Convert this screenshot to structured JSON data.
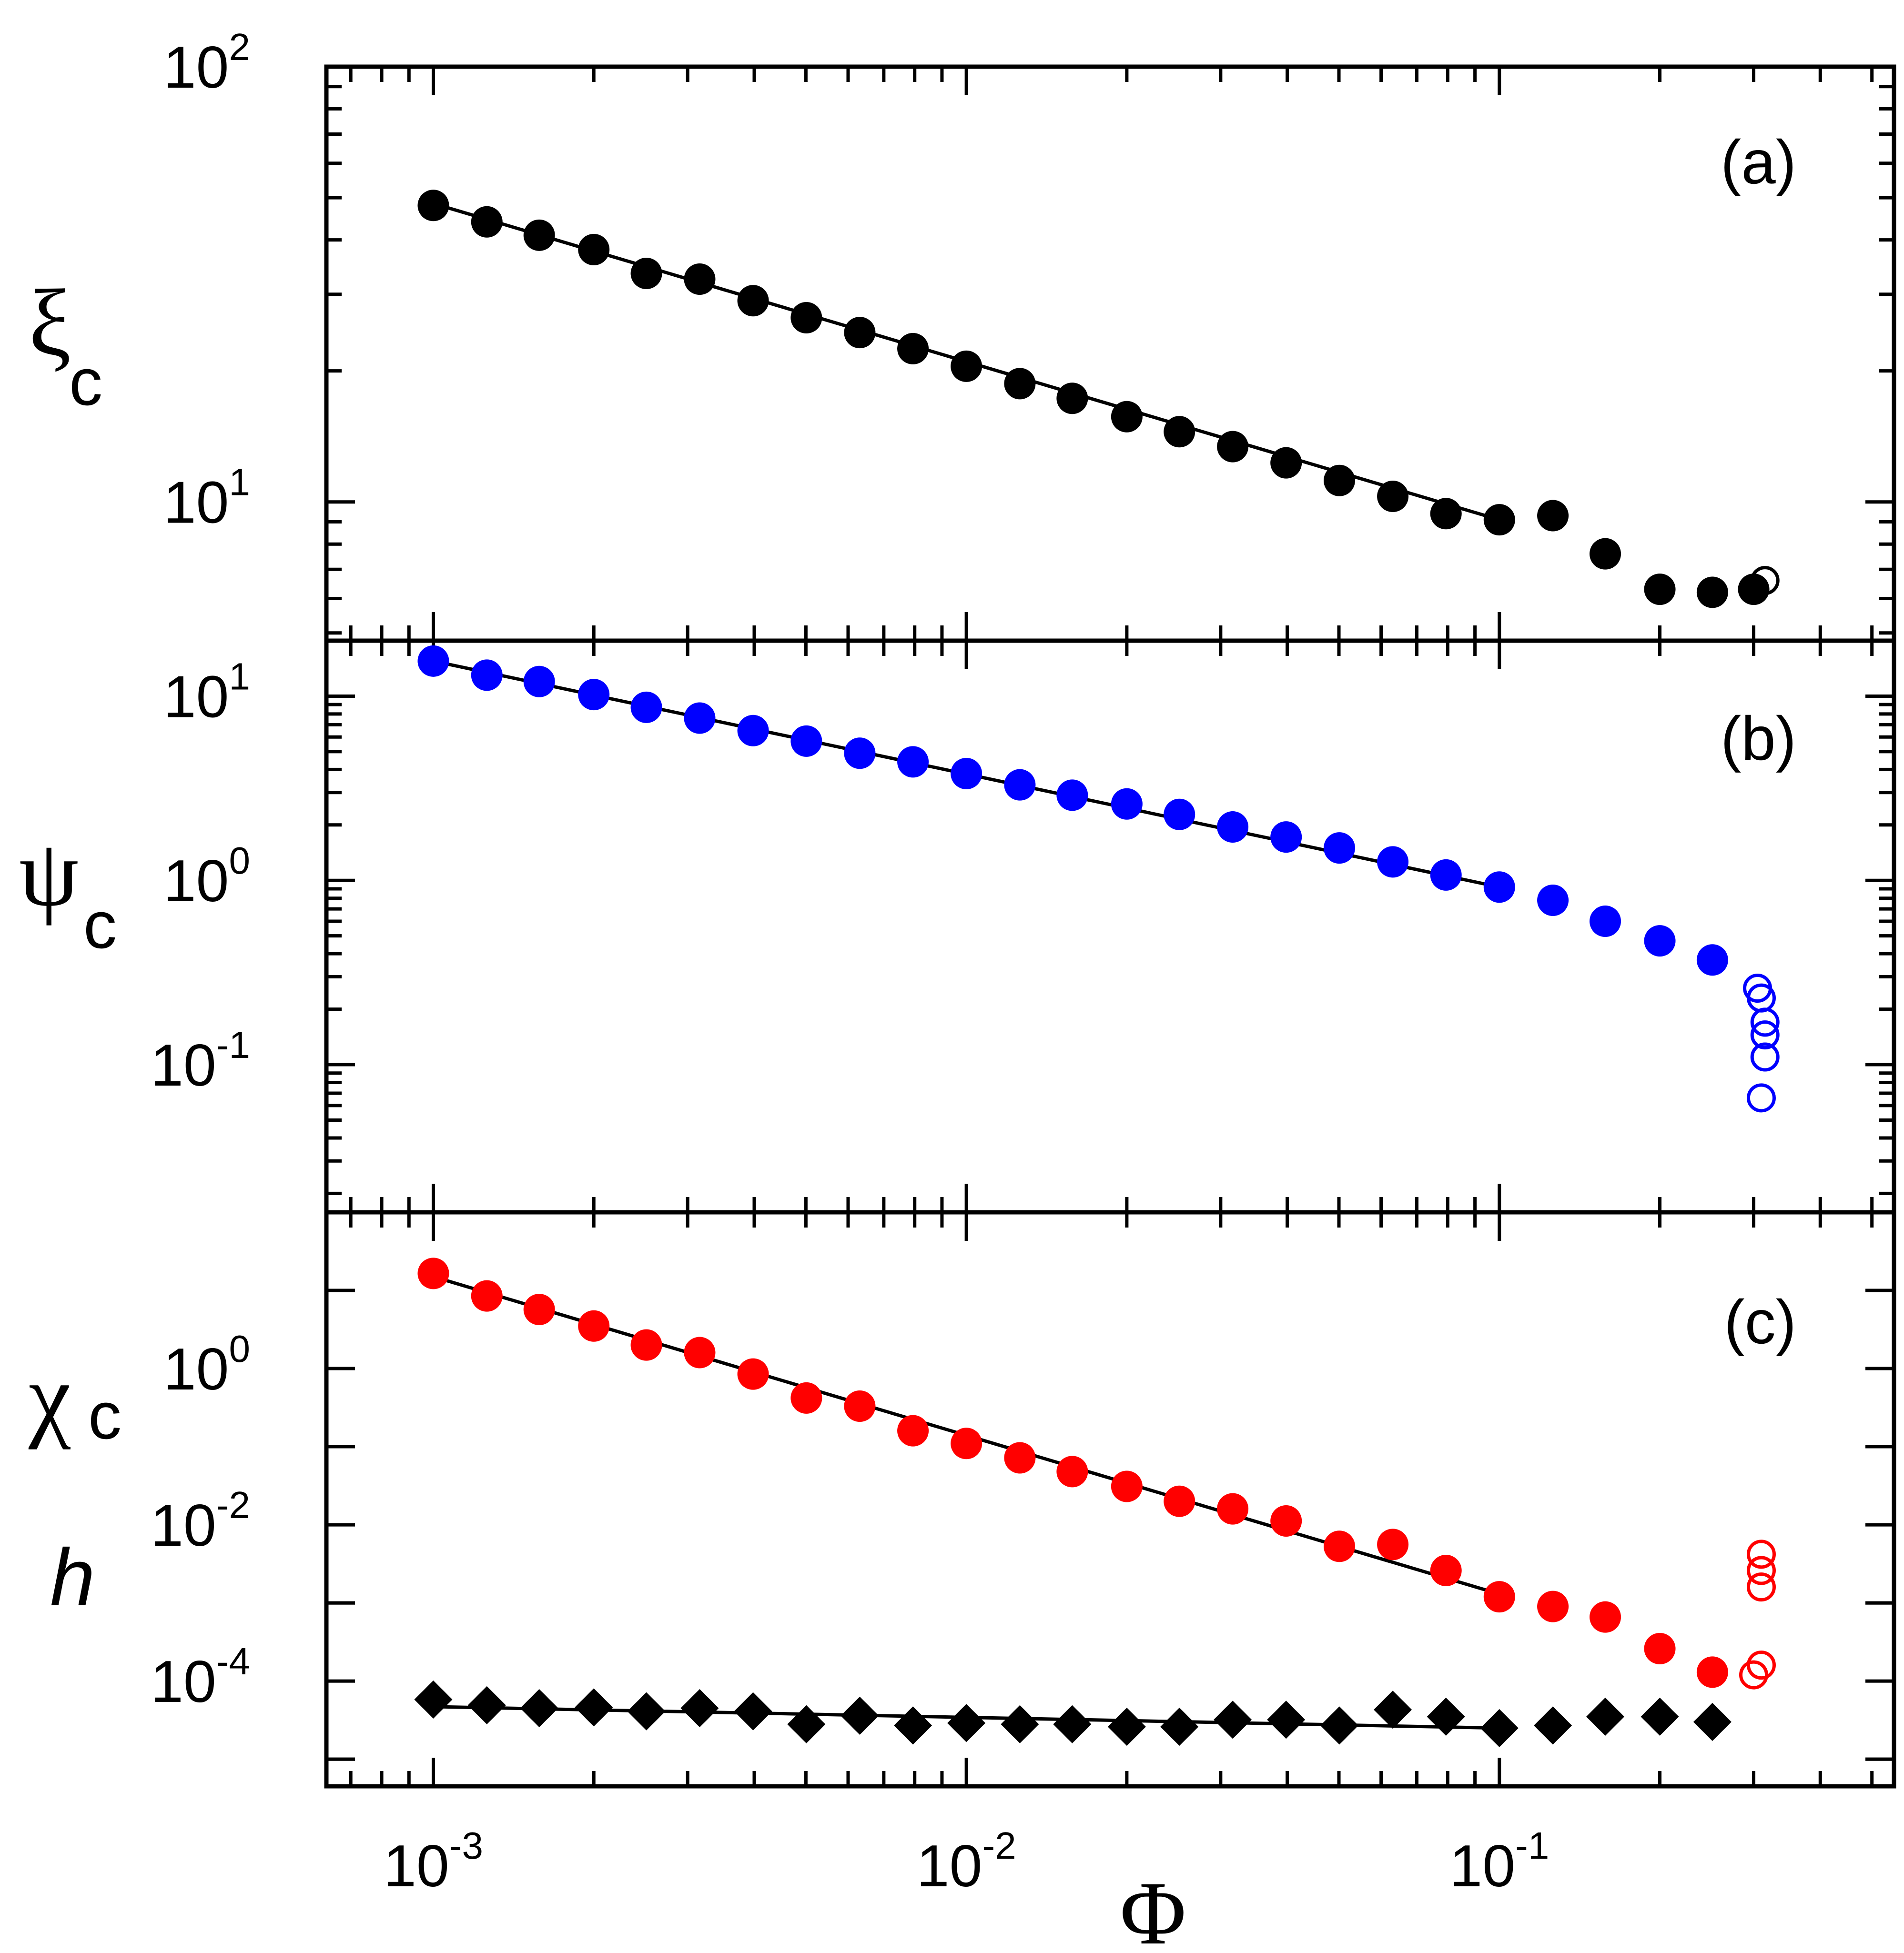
{
  "x_axis": {
    "label": "Φ",
    "ticks": [
      {
        "value": 0.001,
        "base": "10",
        "exp": "-3"
      },
      {
        "value": 0.01,
        "base": "10",
        "exp": "-2"
      },
      {
        "value": 0.1,
        "base": "10",
        "exp": "-1"
      }
    ]
  },
  "chart_data": [
    {
      "panel": "(a)",
      "type": "scatter",
      "scale": "log-log",
      "ylabel": {
        "main": "ξ",
        "sub": "c"
      },
      "xlim": [
        0.00063,
        0.55
      ],
      "ylim": [
        4.8,
        100
      ],
      "yticks": [
        {
          "value": 10,
          "base": "10",
          "exp": "1"
        },
        {
          "value": 100,
          "base": "10",
          "exp": "2"
        }
      ],
      "series": [
        {
          "name": "xi_c",
          "marker": "filled-circle",
          "color": "#000000",
          "x": [
            0.001,
            0.00126,
            0.00158,
            0.002,
            0.00251,
            0.00316,
            0.00398,
            0.00501,
            0.00631,
            0.00794,
            0.01,
            0.0126,
            0.0158,
            0.02,
            0.0251,
            0.0316,
            0.0398,
            0.0501,
            0.0631,
            0.0794,
            0.1,
            0.126,
            0.158,
            0.2,
            0.251,
            0.3
          ],
          "y": [
            48,
            44,
            41,
            38,
            33.5,
            32.5,
            29,
            26.5,
            24.5,
            22.5,
            20.5,
            18.7,
            17.3,
            15.7,
            14.5,
            13.4,
            12.3,
            11.2,
            10.3,
            9.4,
            9.1,
            9.3,
            7.6,
            6.3,
            6.2,
            6.3
          ]
        },
        {
          "name": "xi_c_open",
          "marker": "open-circle",
          "color": "#000000",
          "x": [
            0.315
          ],
          "y": [
            6.6
          ]
        }
      ],
      "fit": {
        "x": [
          0.001,
          0.1
        ],
        "y": [
          48.5,
          9.1
        ]
      }
    },
    {
      "panel": "(b)",
      "type": "scatter",
      "scale": "log-log",
      "ylabel": {
        "main": "ψ",
        "sub": "c"
      },
      "xlim": [
        0.00063,
        0.55
      ],
      "ylim": [
        0.0158,
        20
      ],
      "yticks": [
        {
          "value": 0.1,
          "base": "10",
          "exp": "-1"
        },
        {
          "value": 1,
          "base": "10",
          "exp": "0"
        },
        {
          "value": 10,
          "base": "10",
          "exp": "1"
        }
      ],
      "series": [
        {
          "name": "psi_c",
          "marker": "filled-circle",
          "color": "#0000ff",
          "x": [
            0.001,
            0.00126,
            0.00158,
            0.002,
            0.00251,
            0.00316,
            0.00398,
            0.00501,
            0.00631,
            0.00794,
            0.01,
            0.0126,
            0.0158,
            0.02,
            0.0251,
            0.0316,
            0.0398,
            0.0501,
            0.0631,
            0.0794,
            0.1,
            0.126,
            0.158,
            0.2,
            0.251
          ],
          "y": [
            15.5,
            13,
            12,
            10.2,
            8.7,
            7.6,
            6.5,
            5.7,
            4.9,
            4.4,
            3.8,
            3.3,
            2.9,
            2.6,
            2.28,
            1.95,
            1.72,
            1.5,
            1.26,
            1.07,
            0.92,
            0.78,
            0.6,
            0.47,
            0.37
          ]
        },
        {
          "name": "psi_c_open",
          "marker": "open-circle",
          "color": "#0000ff",
          "x": [
            0.305,
            0.31,
            0.315,
            0.315,
            0.315,
            0.31
          ],
          "y": [
            0.26,
            0.23,
            0.17,
            0.145,
            0.11,
            0.066
          ]
        }
      ],
      "fit": {
        "x": [
          0.001,
          0.1
        ],
        "y": [
          15.5,
          0.92
        ]
      }
    },
    {
      "panel": "(c)",
      "type": "scatter",
      "scale": "log-log",
      "ylabel": {
        "main": "χ",
        "sub": "c",
        "second": "h"
      },
      "xlim": [
        0.00063,
        0.55
      ],
      "ylim": [
        4.5e-06,
        100
      ],
      "yticks": [
        {
          "value": 0.0001,
          "base": "10",
          "exp": "-4"
        },
        {
          "value": 0.01,
          "base": "10",
          "exp": "-2"
        },
        {
          "value": 1,
          "base": "10",
          "exp": "0"
        }
      ],
      "series": [
        {
          "name": "chi_c",
          "marker": "filled-circle",
          "color": "#ff0000",
          "x": [
            0.001,
            0.00126,
            0.00158,
            0.002,
            0.00251,
            0.00316,
            0.00398,
            0.00501,
            0.00631,
            0.00794,
            0.01,
            0.0126,
            0.0158,
            0.02,
            0.0251,
            0.0316,
            0.0398,
            0.0501,
            0.0631,
            0.0794,
            0.1,
            0.126,
            0.158,
            0.2,
            0.251
          ],
          "y": [
            16.5,
            8.5,
            5.7,
            3.5,
            2.0,
            1.6,
            0.85,
            0.42,
            0.33,
            0.16,
            0.11,
            0.072,
            0.048,
            0.031,
            0.02,
            0.016,
            0.0112,
            0.0053,
            0.0056,
            0.0026,
            0.0012,
            0.0009,
            0.00066,
            0.00026,
            0.00013
          ]
        },
        {
          "name": "chi_c_open",
          "marker": "open-circle",
          "color": "#ff0000",
          "x": [
            0.31,
            0.31,
            0.31,
            0.31,
            0.3
          ],
          "y": [
            0.0042,
            0.0026,
            0.0016,
            0.00016,
            0.00012
          ]
        },
        {
          "name": "h",
          "marker": "filled-diamond",
          "color": "#000000",
          "x": [
            0.001,
            0.00126,
            0.00158,
            0.002,
            0.00251,
            0.00316,
            0.00398,
            0.00501,
            0.00631,
            0.00794,
            0.01,
            0.0126,
            0.0158,
            0.02,
            0.0251,
            0.0316,
            0.0398,
            0.0501,
            0.0631,
            0.0794,
            0.1,
            0.126,
            0.158,
            0.2,
            0.251
          ],
          "y": [
            5.8e-05,
            4.9e-05,
            4.5e-05,
            4.6e-05,
            4.1e-05,
            4.5e-05,
            4.1e-05,
            2.8e-05,
            3.6e-05,
            2.7e-05,
            2.9e-05,
            2.8e-05,
            2.8e-05,
            2.6e-05,
            2.6e-05,
            3.2e-05,
            3.2e-05,
            2.7e-05,
            4.3e-05,
            3.5e-05,
            2.5e-05,
            2.7e-05,
            3.5e-05,
            3.5e-05,
            3e-05
          ]
        }
      ],
      "fit": {
        "x": [
          0.001,
          0.1
        ],
        "y": [
          15.0,
          0.0013
        ]
      },
      "fit2": {
        "x": [
          0.001,
          0.1
        ],
        "y": [
          4.7e-05,
          2.5e-05
        ]
      }
    }
  ]
}
